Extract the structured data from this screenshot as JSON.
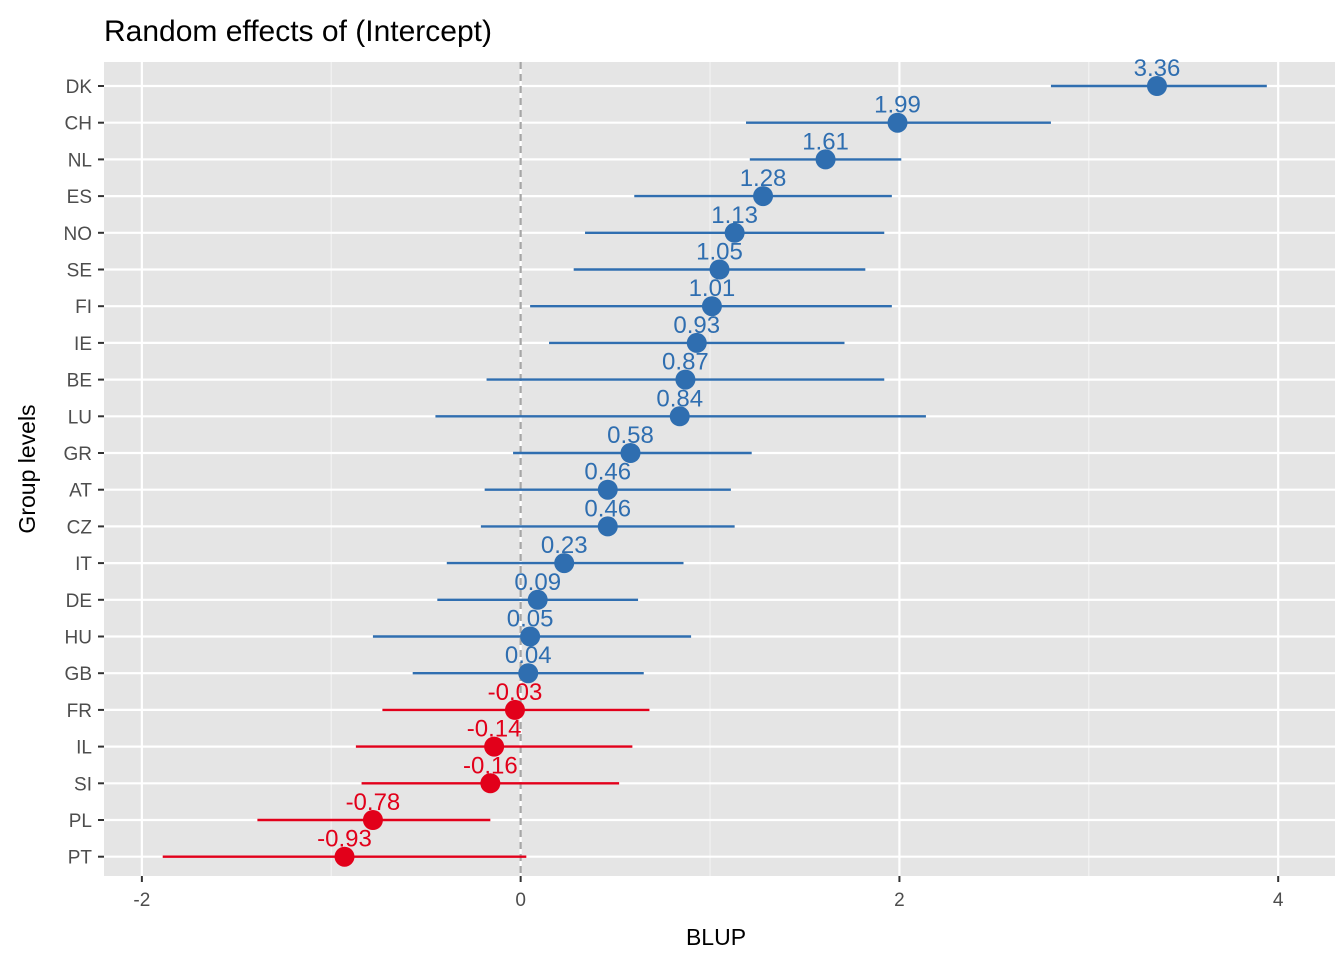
{
  "chart_data": {
    "type": "scatter",
    "subtype": "dot-and-whisker",
    "title": "Random effects of  (Intercept)",
    "xlabel": "BLUP",
    "ylabel": "Group levels",
    "xlim": [
      -2.2,
      4.3
    ],
    "x_ticks": [
      -2,
      0,
      2,
      4
    ],
    "x_tick_labels": [
      "-2",
      "0",
      "2",
      "4"
    ],
    "reference_line": 0,
    "grid": true,
    "background": "#e5e5e5",
    "colors": {
      "positive": "#2f6eb0",
      "negative": "#e2001a",
      "reference": "#a6a6a6"
    },
    "points": [
      {
        "label": "DK",
        "value": 3.36,
        "value_label": "3.36",
        "low": 2.8,
        "high": 3.94
      },
      {
        "label": "CH",
        "value": 1.99,
        "value_label": "1.99",
        "low": 1.19,
        "high": 2.8
      },
      {
        "label": "NL",
        "value": 1.61,
        "value_label": "1.61",
        "low": 1.21,
        "high": 2.01
      },
      {
        "label": "ES",
        "value": 1.28,
        "value_label": "1.28",
        "low": 0.6,
        "high": 1.96
      },
      {
        "label": "NO",
        "value": 1.13,
        "value_label": "1.13",
        "low": 0.34,
        "high": 1.92
      },
      {
        "label": "SE",
        "value": 1.05,
        "value_label": "1.05",
        "low": 0.28,
        "high": 1.82
      },
      {
        "label": "FI",
        "value": 1.01,
        "value_label": "1.01",
        "low": 0.05,
        "high": 1.96
      },
      {
        "label": "IE",
        "value": 0.93,
        "value_label": "0.93",
        "low": 0.15,
        "high": 1.71
      },
      {
        "label": "BE",
        "value": 0.87,
        "value_label": "0.87",
        "low": -0.18,
        "high": 1.92
      },
      {
        "label": "LU",
        "value": 0.84,
        "value_label": "0.84",
        "low": -0.45,
        "high": 2.14
      },
      {
        "label": "GR",
        "value": 0.58,
        "value_label": "0.58",
        "low": -0.04,
        "high": 1.22
      },
      {
        "label": "AT",
        "value": 0.46,
        "value_label": "0.46",
        "low": -0.19,
        "high": 1.11
      },
      {
        "label": "CZ",
        "value": 0.46,
        "value_label": "0.46",
        "low": -0.21,
        "high": 1.13
      },
      {
        "label": "IT",
        "value": 0.23,
        "value_label": "0.23",
        "low": -0.39,
        "high": 0.86
      },
      {
        "label": "DE",
        "value": 0.09,
        "value_label": "0.09",
        "low": -0.44,
        "high": 0.62
      },
      {
        "label": "HU",
        "value": 0.05,
        "value_label": "0.05",
        "low": -0.78,
        "high": 0.9
      },
      {
        "label": "GB",
        "value": 0.04,
        "value_label": "0.04",
        "low": -0.57,
        "high": 0.65
      },
      {
        "label": "FR",
        "value": -0.03,
        "value_label": "-0.03",
        "low": -0.73,
        "high": 0.68
      },
      {
        "label": "IL",
        "value": -0.14,
        "value_label": "-0.14",
        "low": -0.87,
        "high": 0.59
      },
      {
        "label": "SI",
        "value": -0.16,
        "value_label": "-0.16",
        "low": -0.84,
        "high": 0.52
      },
      {
        "label": "PL",
        "value": -0.78,
        "value_label": "-0.78",
        "low": -1.39,
        "high": -0.16
      },
      {
        "label": "PT",
        "value": -0.93,
        "value_label": "-0.93",
        "low": -1.89,
        "high": 0.03
      }
    ]
  }
}
